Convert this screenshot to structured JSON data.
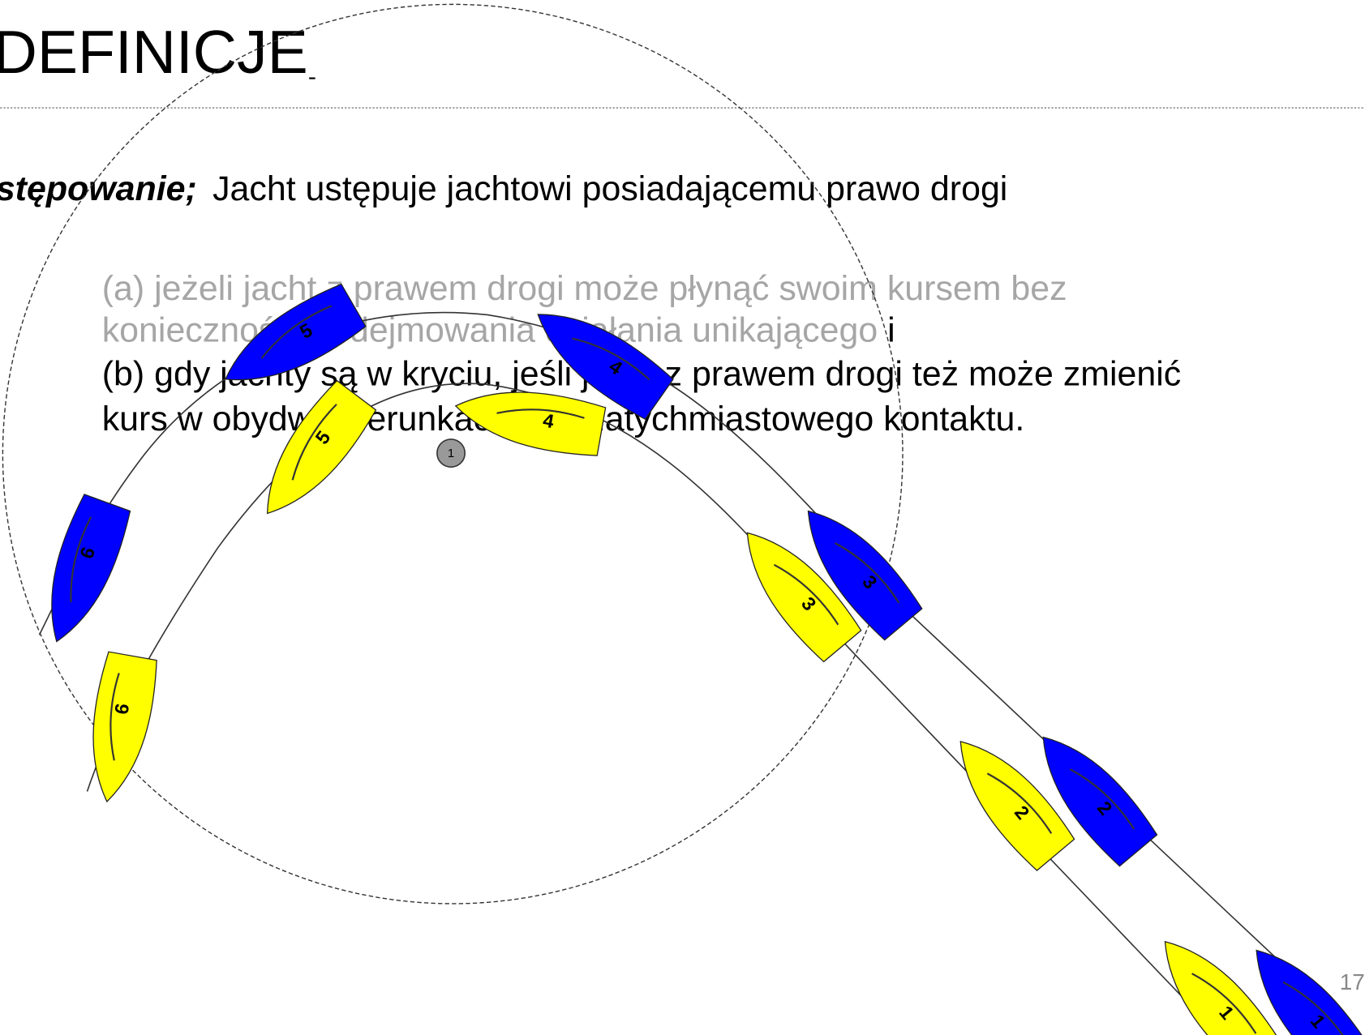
{
  "header": {
    "title": "DEFINICJE"
  },
  "body": {
    "term": "stępowanie;",
    "definition": "Jacht ustępuje jachtowi posiadającemu prawo drogi",
    "items": [
      {
        "lines": [
          "(a) jeżeli jacht z prawem drogi może płynąć swoim kursem bez",
          "konieczności podejmowania działania unikającego"
        ],
        "suffix": " i"
      },
      {
        "lines": [
          "(b) gdy jachty są w kryciu, jeśli jacht z prawem drogi też może zmienić",
          "kurs w obydwu kierunkach bez natychmiastowego kontaktu."
        ]
      }
    ]
  },
  "diagram": {
    "mark": "1",
    "fleets": [
      {
        "color": "#ffff00",
        "labels": [
          "1",
          "2",
          "3",
          "4",
          "5",
          "6"
        ]
      },
      {
        "color": "#0000ff",
        "labels": [
          "1",
          "2",
          "3",
          "4",
          "5",
          "6"
        ]
      }
    ]
  },
  "page_number": "17"
}
